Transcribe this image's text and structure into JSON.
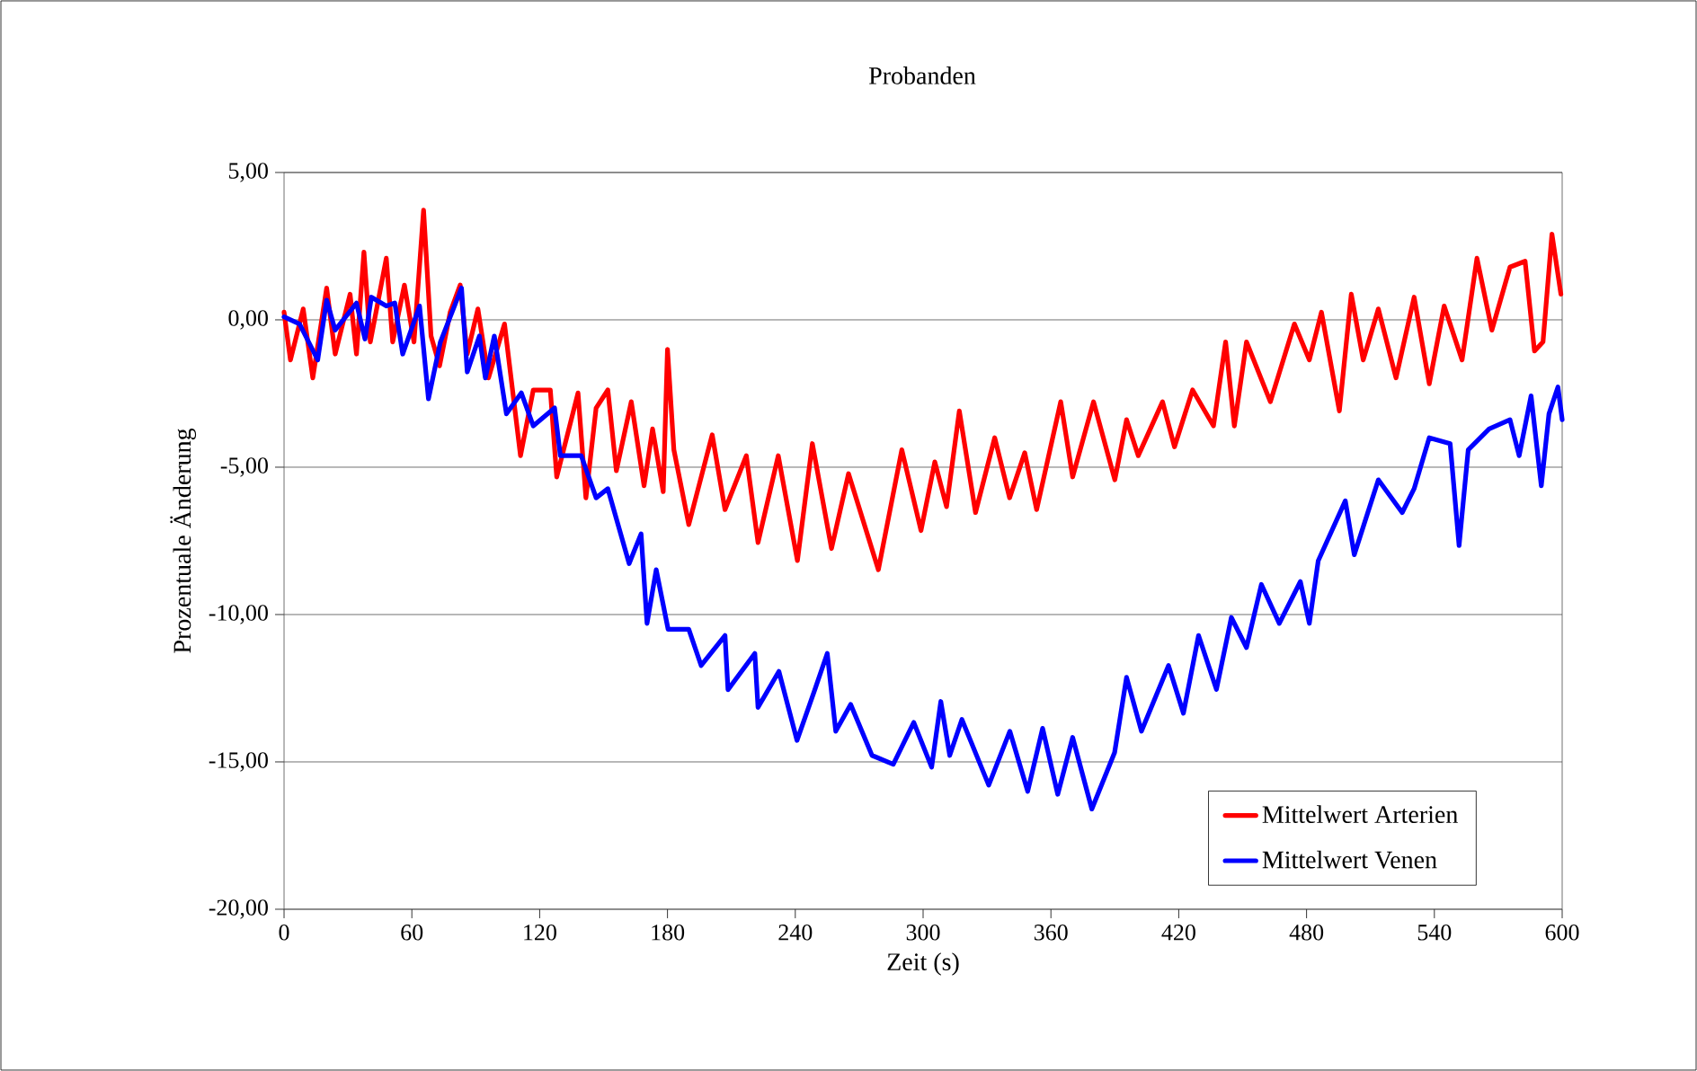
{
  "chart_data": {
    "type": "line",
    "title": "Probanden",
    "xlabel": "Zeit (s)",
    "ylabel": "Prozentuale Änderung",
    "xlim": [
      0,
      600
    ],
    "xticks": [
      0,
      60,
      120,
      180,
      240,
      300,
      360,
      420,
      480,
      540,
      600
    ],
    "ylim": [
      -20,
      5
    ],
    "yticks": [
      {
        "value": 5,
        "label": "5,00"
      },
      {
        "value": 0,
        "label": "0,00"
      },
      {
        "value": -5,
        "label": "-5,00"
      },
      {
        "value": -10,
        "label": "-10,00"
      },
      {
        "value": -15,
        "label": "-15,00"
      },
      {
        "value": -20,
        "label": "-20,00"
      }
    ],
    "grid": "y",
    "legend": "bottom right",
    "series": [
      {
        "name": "Mittelwert Arterien",
        "color": "#ff0000",
        "x": [
          0,
          3,
          9,
          13.5,
          20,
          24,
          31,
          34,
          37.5,
          40.5,
          48,
          51,
          56.5,
          61,
          65.5,
          69,
          73,
          78,
          82.7,
          86,
          91,
          96,
          103.5,
          111,
          117,
          125,
          128,
          138,
          141.7,
          146.5,
          152,
          156,
          163,
          169,
          173,
          178,
          180,
          183,
          190,
          201,
          207,
          217,
          222.5,
          232,
          241,
          248,
          257,
          265,
          279,
          290,
          299,
          305.5,
          311,
          317,
          324.6,
          333.6,
          340.6,
          347.7,
          353.3,
          364.6,
          370.2,
          380,
          390,
          395.5,
          401,
          412.4,
          418,
          426.5,
          436.3,
          442,
          446.1,
          451.8,
          463,
          474.3,
          481.3,
          487,
          495.4,
          501,
          506.6,
          513.7,
          522,
          530.5,
          537.6,
          544.6,
          553,
          560,
          567,
          575.5,
          582.6,
          587,
          591,
          595.2,
          599.4
        ],
        "values": [
          0.26,
          -1.36,
          0.37,
          -1.97,
          1.08,
          -1.16,
          0.87,
          -1.16,
          2.3,
          -0.75,
          2.09,
          -0.75,
          1.18,
          -0.75,
          3.72,
          -0.55,
          -1.56,
          0.26,
          1.18,
          -1.16,
          0.37,
          -1.97,
          -0.14,
          -4.61,
          -2.38,
          -2.38,
          -5.33,
          -2.48,
          -6.04,
          -2.99,
          -2.38,
          -5.12,
          -2.78,
          -5.63,
          -3.7,
          -5.83,
          -1.0,
          -4.41,
          -6.95,
          -3.9,
          -6.44,
          -4.61,
          -7.56,
          -4.61,
          -8.17,
          -4.2,
          -7.76,
          -5.22,
          -8.48,
          -4.41,
          -7.15,
          -4.82,
          -6.34,
          -3.09,
          -6.54,
          -4.0,
          -6.04,
          -4.51,
          -6.44,
          -2.78,
          -5.33,
          -2.78,
          -5.43,
          -3.39,
          -4.61,
          -2.78,
          -4.31,
          -2.38,
          -3.6,
          -0.75,
          -3.6,
          -0.75,
          -2.78,
          -0.14,
          -1.36,
          0.26,
          -3.09,
          0.87,
          -1.36,
          0.37,
          -1.97,
          0.77,
          -2.17,
          0.47,
          -1.36,
          2.09,
          -0.35,
          1.79,
          1.99,
          -1.06,
          -0.75,
          2.91,
          0.87
        ]
      },
      {
        "name": "Mittelwert Venen",
        "color": "#0000ff",
        "x": [
          0,
          7.3,
          15.8,
          20,
          24,
          34,
          38,
          41,
          48,
          52,
          55.7,
          63.6,
          67.8,
          73.4,
          83.3,
          86,
          91.7,
          94.5,
          98.7,
          104.4,
          111.4,
          117,
          127,
          129.7,
          139.5,
          146.5,
          152,
          162,
          167.6,
          170.4,
          174.7,
          180.3,
          190,
          195.8,
          207,
          208.4,
          221,
          222.5,
          232.3,
          240.8,
          249.2,
          255,
          259,
          266,
          276,
          286,
          295.6,
          304,
          308.3,
          312.5,
          318.2,
          330.8,
          340.7,
          349.1,
          356.1,
          363.2,
          370.2,
          379.2,
          389.9,
          395.5,
          402.5,
          415.2,
          422.2,
          429.3,
          437.7,
          444.7,
          451.8,
          458.8,
          467.2,
          477.1,
          481.3,
          485.5,
          498.2,
          502.4,
          513.7,
          524.9,
          530.5,
          537.6,
          547.4,
          551.6,
          555.9,
          565.7,
          575.5,
          579.8,
          585.4,
          590.2,
          593.8,
          598,
          600
        ],
        "values": [
          0.1,
          -0.14,
          -1.36,
          0.67,
          -0.35,
          0.57,
          -0.65,
          0.77,
          0.47,
          0.57,
          -1.16,
          0.47,
          -2.68,
          -0.75,
          1.08,
          -1.77,
          -0.55,
          -1.97,
          -0.55,
          -3.19,
          -2.48,
          -3.6,
          -2.99,
          -4.61,
          -4.61,
          -6.04,
          -5.73,
          -8.27,
          -7.26,
          -10.3,
          -8.48,
          -10.5,
          -10.5,
          -11.73,
          -10.71,
          -12.55,
          -11.32,
          -13.15,
          -11.93,
          -14.27,
          -12.54,
          -11.32,
          -13.96,
          -13.05,
          -14.78,
          -15.08,
          -13.66,
          -15.18,
          -12.95,
          -14.78,
          -13.56,
          -15.79,
          -13.96,
          -16.0,
          -13.86,
          -16.1,
          -14.17,
          -16.6,
          -14.68,
          -12.13,
          -13.96,
          -11.73,
          -13.35,
          -10.71,
          -12.54,
          -10.1,
          -11.12,
          -8.98,
          -10.3,
          -8.88,
          -10.3,
          -8.17,
          -6.14,
          -7.97,
          -5.43,
          -6.54,
          -5.73,
          -4.0,
          -4.2,
          -7.66,
          -4.41,
          -3.7,
          -3.39,
          -4.61,
          -2.58,
          -5.63,
          -3.19,
          -2.28,
          -3.39
        ]
      }
    ]
  }
}
